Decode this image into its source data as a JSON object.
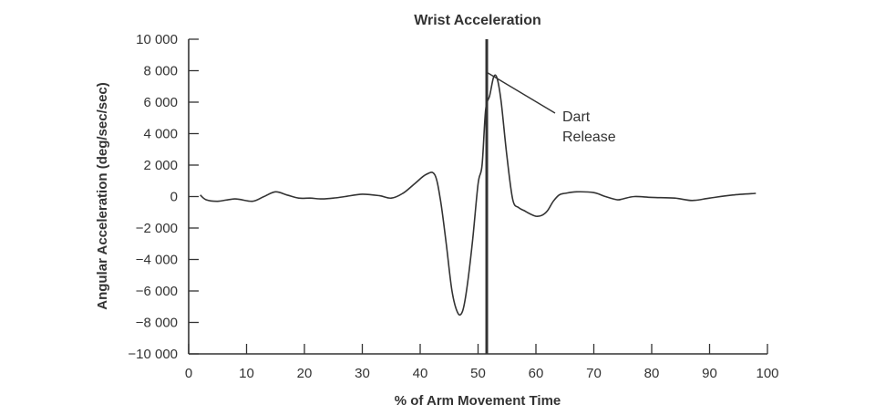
{
  "chart_data": {
    "type": "line",
    "title": "Wrist Acceleration",
    "xlabel": "% of Arm Movement Time",
    "ylabel": "Angular Acceleration (deg/sec/sec)",
    "xlim": [
      0,
      100
    ],
    "ylim": [
      -10000,
      10000
    ],
    "x_ticks": [
      0,
      10,
      20,
      30,
      40,
      50,
      60,
      70,
      80,
      90,
      100
    ],
    "x_tick_labels": [
      "0",
      "10",
      "20",
      "30",
      "40",
      "50",
      "60",
      "70",
      "80",
      "90",
      "100"
    ],
    "y_ticks": [
      10000,
      8000,
      6000,
      4000,
      2000,
      0,
      -2000,
      -4000,
      -6000,
      -8000,
      -10000
    ],
    "y_tick_labels": [
      "10 000",
      "8 000",
      "6 000",
      "4 000",
      "2 000",
      "0",
      "−2 000",
      "−4 000",
      "−6 000",
      "−8 000",
      "−10 000"
    ],
    "grid": false,
    "series": [
      {
        "x": [
          2,
          3,
          5,
          8,
          11,
          13,
          15,
          17,
          19,
          21,
          23,
          25,
          27,
          30,
          33,
          35,
          37,
          39,
          41,
          42.5,
          43.5,
          44.5,
          45.5,
          46.5,
          47.3,
          48,
          49,
          50,
          50.7,
          51.3,
          52,
          52.7,
          53.3,
          54,
          55,
          56,
          57,
          58,
          59,
          60,
          61,
          62,
          63,
          64,
          65,
          67,
          70,
          72,
          74,
          75,
          77,
          80,
          84,
          87,
          90,
          94,
          98
        ],
        "y": [
          100,
          -200,
          -300,
          -150,
          -300,
          0,
          300,
          100,
          -100,
          -100,
          -150,
          -100,
          0,
          150,
          50,
          -100,
          200,
          800,
          1400,
          1400,
          -200,
          -3000,
          -6000,
          -7400,
          -7300,
          -6000,
          -3000,
          800,
          2000,
          5500,
          6400,
          7600,
          7500,
          6000,
          2500,
          -200,
          -700,
          -900,
          -1100,
          -1250,
          -1200,
          -900,
          -300,
          100,
          200,
          300,
          250,
          0,
          -200,
          -150,
          0,
          -50,
          -100,
          -250,
          -100,
          100,
          200
        ]
      }
    ],
    "vertical_line": {
      "x": 51.5
    },
    "annotation": {
      "lines": [
        "Dart",
        "Release"
      ],
      "points_to": {
        "x": 51.5,
        "y": 7900
      }
    }
  }
}
